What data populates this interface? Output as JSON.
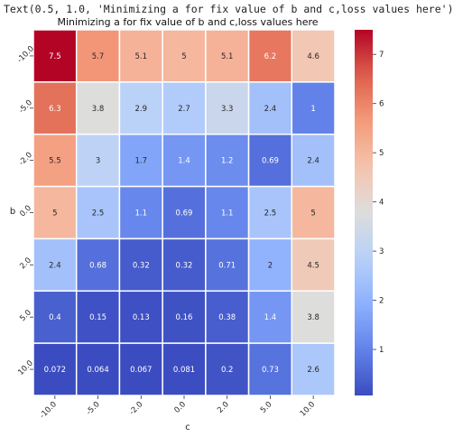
{
  "output_text": "Text(0.5, 1.0, 'Minimizing a for fix value of b and c,loss values here')",
  "chart_data": {
    "type": "heatmap",
    "title": "Minimizing a for fix value of b and c,loss values here",
    "xlabel": "c",
    "ylabel": "b",
    "x_categories": [
      "-10.0",
      "-5.0",
      "-2.0",
      "0.0",
      "2.0",
      "5.0",
      "10.0"
    ],
    "y_categories": [
      "-10.0",
      "-5.0",
      "-2.0",
      "0.0",
      "2.0",
      "5.0",
      "10.0"
    ],
    "values": [
      [
        7.5,
        5.7,
        5.1,
        5,
        5.1,
        6.2,
        4.6
      ],
      [
        6.3,
        3.8,
        2.9,
        2.7,
        3.3,
        2.4,
        1
      ],
      [
        5.5,
        3,
        1.7,
        1.4,
        1.2,
        0.69,
        2.4
      ],
      [
        5,
        2.5,
        1.1,
        0.69,
        1.1,
        2.5,
        5
      ],
      [
        2.4,
        0.68,
        0.32,
        0.32,
        0.71,
        2,
        4.5
      ],
      [
        0.4,
        0.15,
        0.13,
        0.16,
        0.38,
        1.4,
        3.8
      ],
      [
        0.072,
        0.064,
        0.067,
        0.081,
        0.2,
        0.73,
        2.6
      ]
    ],
    "colormap": "coolwarm",
    "vmin": 0.064,
    "vmax": 7.5,
    "colorbar_ticks": [
      1,
      2,
      3,
      4,
      5,
      6,
      7
    ],
    "grid": "white cell borders"
  }
}
